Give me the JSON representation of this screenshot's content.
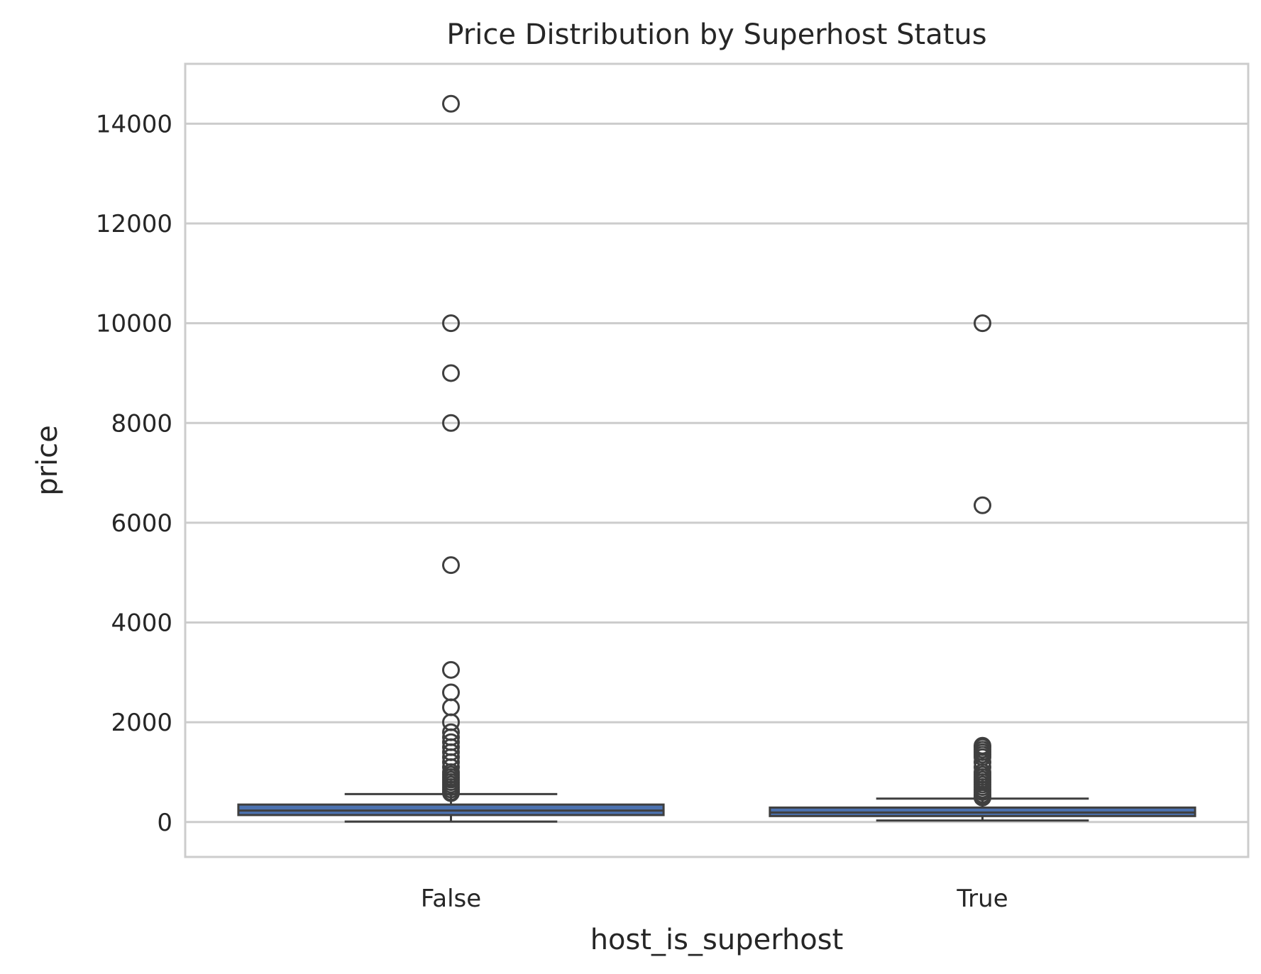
{
  "chart_data": {
    "type": "box",
    "title": "Price Distribution by Superhost Status",
    "xlabel": "host_is_superhost",
    "ylabel": "price",
    "categories": [
      "False",
      "True"
    ],
    "ylim": [
      -700,
      15200
    ],
    "yticks": [
      0,
      2000,
      4000,
      6000,
      8000,
      10000,
      12000,
      14000
    ],
    "grid": true,
    "legend": "none",
    "colors": {
      "box_fill": "#4c72b0",
      "box_edge": "#3f3f3f",
      "grid": "#cccccc",
      "spine": "#cccccc",
      "median": "#3f3f3f"
    },
    "boxes": [
      {
        "category": "False",
        "whisker_low": 10,
        "q1": 140,
        "median": 230,
        "q3": 350,
        "whisker_high": 560,
        "outliers": [
          14400,
          10000,
          9000,
          8000,
          5150,
          3050,
          2600,
          2300,
          2000,
          1800,
          1700,
          1600,
          1500,
          1400,
          1300,
          1200,
          1100,
          1000,
          950,
          900,
          850,
          800,
          750,
          700,
          650,
          600,
          580
        ]
      },
      {
        "category": "True",
        "whisker_low": 30,
        "q1": 120,
        "median": 190,
        "q3": 290,
        "whisker_high": 470,
        "outliers": [
          10000,
          6350,
          1530,
          1500,
          1450,
          1400,
          1350,
          1300,
          1200,
          1100,
          1000,
          950,
          900,
          850,
          800,
          750,
          700,
          650,
          600,
          550,
          520,
          490
        ]
      }
    ]
  }
}
